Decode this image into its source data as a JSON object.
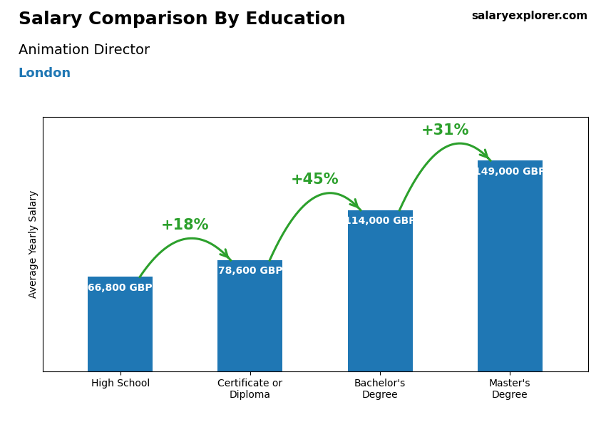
{
  "chart_data": {
    "type": "bar",
    "title": "Salary Comparison By Education",
    "subtitle": "Animation Director",
    "ylabel": "Average Yearly Salary",
    "categories": [
      "High School",
      "Certificate or\nDiploma",
      "Bachelor's\nDegree",
      "Master's\nDegree"
    ],
    "values": [
      66800,
      78600,
      114000,
      149000
    ],
    "value_labels": [
      "66,800 GBP",
      "78,600 GBP",
      "114,000 GBP",
      "149,000 GBP"
    ],
    "data_labels": true,
    "ylim": [
      0,
      180000
    ],
    "tick_labels": "x",
    "annotations": [
      {
        "text": "+18%",
        "from": "High School",
        "to": "Certificate or\nDiploma"
      },
      {
        "text": "+45%",
        "from": "Certificate or\nDiploma",
        "to": "Bachelor's\nDegree"
      },
      {
        "text": "+31%",
        "from": "Bachelor's\nDegree",
        "to": "Master's\nDegree"
      },
      {
        "text": "London"
      },
      {
        "text": "salaryexplorer.com"
      }
    ]
  }
}
